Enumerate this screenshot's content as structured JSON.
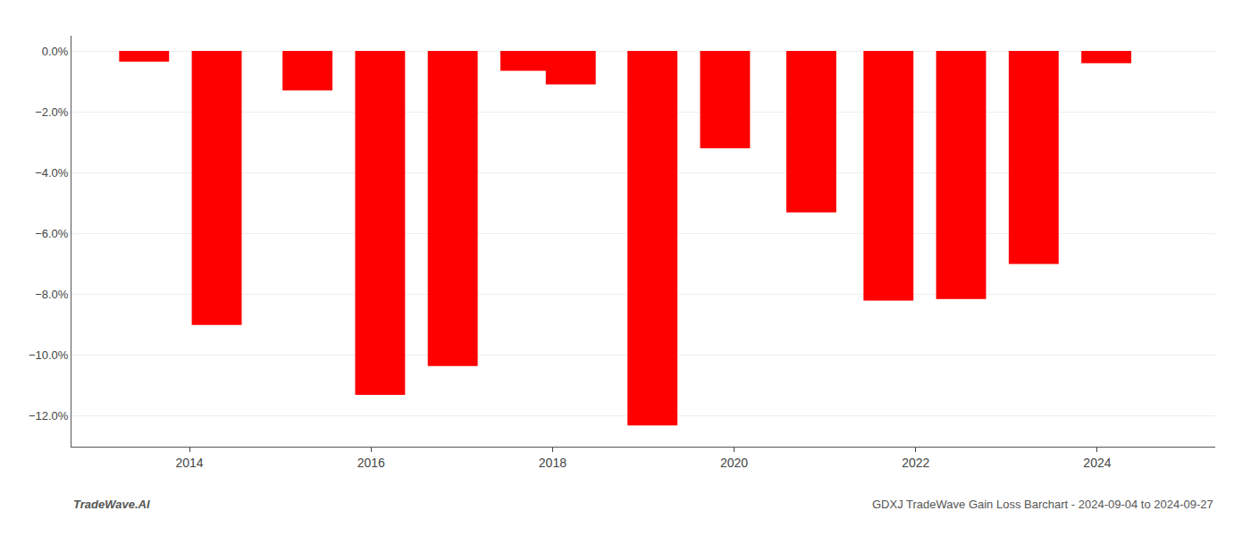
{
  "chart_data": {
    "type": "bar",
    "x": [
      2013.5,
      2014.3,
      2015.3,
      2016.1,
      2016.9,
      2017.7,
      2018.2,
      2019.1,
      2019.9,
      2020.85,
      2021.7,
      2022.5,
      2023.3,
      2024.1
    ],
    "values": [
      -0.35,
      -9.0,
      -1.3,
      -11.3,
      -10.35,
      -0.65,
      -1.1,
      -12.3,
      -3.2,
      -5.3,
      -8.2,
      -8.15,
      -7.0,
      -0.4
    ],
    "color": "#ff0000",
    "xlim": [
      2012.7,
      2025.3
    ],
    "xticks": [
      2014,
      2016,
      2018,
      2020,
      2022,
      2024
    ],
    "ylim": [
      -13.0,
      0.5
    ],
    "yticks": [
      {
        "value": 0.0,
        "label": "0.0%"
      },
      {
        "value": -2.0,
        "label": "−2.0%"
      },
      {
        "value": -4.0,
        "label": "−4.0%"
      },
      {
        "value": -6.0,
        "label": "−6.0%"
      },
      {
        "value": -8.0,
        "label": "−8.0%"
      },
      {
        "value": -10.0,
        "label": "−10.0%"
      },
      {
        "value": -12.0,
        "label": "−12.0%"
      }
    ],
    "grid": true,
    "annotations": [
      "TradeWave.AI",
      "GDXJ TradeWave Gain Loss Barchart - 2024-09-04 to 2024-09-27"
    ]
  }
}
